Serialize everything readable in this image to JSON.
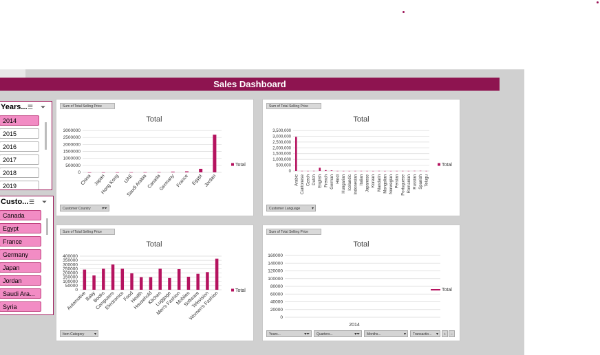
{
  "colors": {
    "brand": "#8e1450",
    "bar": "#b5135f",
    "slicer_selected": "#f28cc4"
  },
  "banner": {
    "title": "Sales Dashboard"
  },
  "slicers": {
    "years": {
      "title": "Years...",
      "items": [
        "2014",
        "2015",
        "2016",
        "2017",
        "2018",
        "2019"
      ],
      "selected": [
        "2014"
      ]
    },
    "customers": {
      "title": "Custo...",
      "items": [
        "Canada",
        "Egypt",
        "France",
        "Germany",
        "Japan",
        "Jordan",
        "Saudi Ara...",
        "Syria"
      ],
      "selected": [
        "Canada",
        "Egypt",
        "France",
        "Germany",
        "Japan",
        "Jordan",
        "Saudi Ara...",
        "Syria"
      ]
    }
  },
  "icons": {
    "multi_select": "multi-select-icon",
    "clear_filter": "clear-filter-icon"
  },
  "chart_data": [
    {
      "type": "bar",
      "field_button": "Sum of Total Selling Price",
      "title": "Total",
      "legend": [
        "Total"
      ],
      "axis_field": "Customer Country",
      "yticks": [
        "3000000",
        "2500000",
        "2000000",
        "1500000",
        "1000000",
        "500000",
        "0"
      ],
      "ylim": [
        0,
        3000000
      ],
      "categories": [
        "China",
        "Japan",
        "Hong Kong",
        "UAE",
        "Saudi Arabia",
        "Canada",
        "Germany",
        "France",
        "Egypt",
        "Jordan"
      ],
      "values": [
        3000,
        5000,
        6000,
        8000,
        9000,
        12000,
        50000,
        70000,
        250000,
        2700000
      ]
    },
    {
      "type": "bar",
      "field_button": "Sum of Total Selling Price",
      "title": "Total",
      "legend": [
        "Total"
      ],
      "axis_field": "Customer Language",
      "yticks": [
        "3,500,000",
        "3,000,000",
        "2,500,000",
        "2,000,000",
        "1,500,000",
        "1,000,000",
        "500,000",
        "0"
      ],
      "ylim": [
        0,
        3500000
      ],
      "categories": [
        "Arabic",
        "Cantonese",
        "Czech",
        "Dutch",
        "English",
        "French",
        "German",
        "Hindi",
        "Hungarian",
        "Icelandic",
        "Indonesian",
        "Italian",
        "Japanese",
        "Korean",
        "Mandarin",
        "Mongolian",
        "Norwegian",
        "Persian",
        "Portuguese",
        "Romanian",
        "Russian",
        "Spanish",
        "Telugu"
      ],
      "values": [
        2950000,
        10000,
        8000,
        12000,
        280000,
        70000,
        50000,
        9000,
        8000,
        7000,
        9000,
        10000,
        8000,
        6000,
        12000,
        6000,
        7000,
        9000,
        10000,
        8000,
        15000,
        20000,
        8000
      ]
    },
    {
      "type": "bar",
      "field_button": "Sum of Total Selling Price",
      "title": "Total",
      "legend": [
        "Total"
      ],
      "axis_field": "Item Category",
      "yticks": [
        "400000",
        "350000",
        "300000",
        "250000",
        "200000",
        "150000",
        "100000",
        "50000",
        "0"
      ],
      "ylim": [
        0,
        400000
      ],
      "categories": [
        "Automotive",
        "Baby",
        "Books",
        "Computers",
        "Electronics",
        "Food",
        "Health",
        "Household",
        "Kitchen",
        "Luggage",
        "Men's Fashion",
        "Mobiles",
        "Software",
        "Television",
        "Women's Fashion"
      ],
      "values": [
        240000,
        170000,
        250000,
        300000,
        250000,
        195000,
        150000,
        150000,
        250000,
        140000,
        245000,
        155000,
        190000,
        210000,
        370000
      ]
    },
    {
      "type": "line",
      "field_button": "Sum of Total Selling Price",
      "title": "Total",
      "legend": [
        "Total"
      ],
      "yticks": [
        "160000",
        "140000",
        "120000",
        "100000",
        "80000",
        "60000",
        "40000",
        "20000",
        "0"
      ],
      "ylim": [
        0,
        160000
      ],
      "categories": [
        "2014"
      ],
      "values": [
        0
      ],
      "filters": [
        "Years...",
        "Quarters...",
        "Months...",
        "Transactio..."
      ],
      "small_buttons": [
        "+",
        "−"
      ]
    }
  ]
}
